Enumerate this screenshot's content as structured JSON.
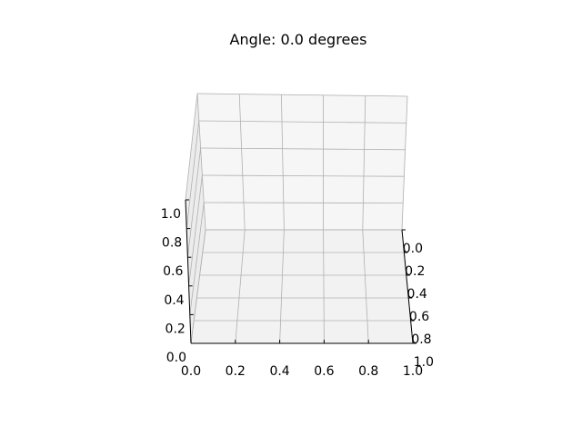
{
  "chart_data": {
    "type": "scatter",
    "title": "Angle: 0.0 degrees",
    "projection": "3d",
    "view": {
      "azimuth_deg": 0.0
    },
    "xlim": [
      0,
      1
    ],
    "ylim": [
      0,
      1
    ],
    "zlim": [
      0,
      1
    ],
    "xticks": [
      "0.0",
      "0.2",
      "0.4",
      "0.6",
      "0.8",
      "1.0"
    ],
    "yticks": [
      "0.0",
      "0.2",
      "0.4",
      "0.6",
      "0.8",
      "1.0"
    ],
    "zticks": [
      "0.0",
      "0.2",
      "0.4",
      "0.6",
      "0.8",
      "1.0"
    ],
    "grid": true,
    "series": []
  },
  "colors": {
    "back_pane": "#f6f6f6",
    "side_pane": "#ececec",
    "floor_pane": "#f2f2f2",
    "grid": "#b0b0b0"
  }
}
